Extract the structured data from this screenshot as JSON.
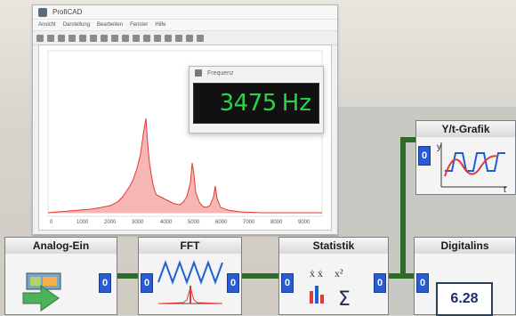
{
  "window": {
    "title": "ProfiCAD",
    "menu": [
      "Ansicht",
      "Darstellung",
      "Bearbeiten",
      "Fenster",
      "Hilfe"
    ],
    "x_ticks": [
      "0",
      "1000",
      "2000",
      "3000",
      "4000",
      "5000",
      "6000",
      "7000",
      "8000",
      "9000"
    ]
  },
  "popup": {
    "title": "Frequenz",
    "value": "3475",
    "unit": "Hz"
  },
  "blocks": {
    "analog": {
      "title": "Analog-Ein",
      "port_value": "0"
    },
    "fft": {
      "title": "FFT",
      "port_in": "0",
      "port_out": "0"
    },
    "stat": {
      "title": "Statistik",
      "port_in": "0",
      "port_out": "0",
      "sum_symbol": "Σ"
    },
    "digital": {
      "title": "Digitalins",
      "value": "6.28",
      "port_in": "0"
    },
    "yt": {
      "title": "Y/t-Grafik",
      "port_in": "0",
      "axis_y": "y",
      "axis_t": "t"
    }
  },
  "colors": {
    "spectrum": "#e53935",
    "display_green": "#2bd34b",
    "port_blue": "#2a5bd7",
    "wire_green": "#2e6a2a"
  }
}
